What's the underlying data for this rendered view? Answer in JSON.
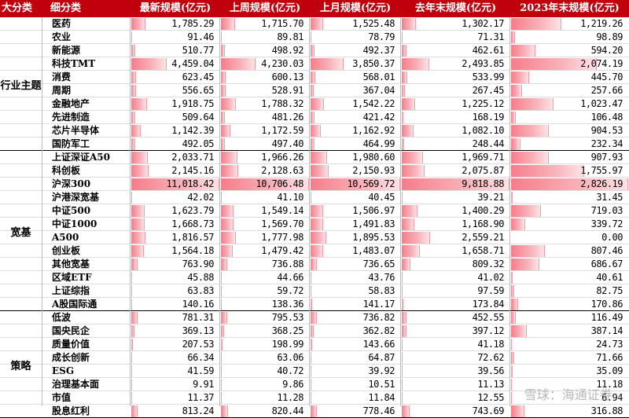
{
  "headers": [
    "大分类",
    "细分类",
    "最新规模(亿元)",
    "上周规模(亿元)",
    "上月规模(亿元)",
    "去年末规模(亿元)",
    "2023年末规模(亿元)"
  ],
  "groups": [
    {
      "name": "行业主题",
      "rows": [
        {
          "name": "医药",
          "values": [
            "1,785.29",
            "1,715.70",
            "1,525.48",
            "1,302.17",
            "1,219.26"
          ],
          "nums": [
            1785.29,
            1715.7,
            1525.48,
            1302.17,
            1219.26
          ]
        },
        {
          "name": "农业",
          "values": [
            "91.46",
            "89.81",
            "78.79",
            "71.31",
            "98.89"
          ],
          "nums": [
            91.46,
            89.81,
            78.79,
            71.31,
            98.89
          ]
        },
        {
          "name": "新能源",
          "values": [
            "510.77",
            "498.92",
            "492.37",
            "462.61",
            "594.20"
          ],
          "nums": [
            510.77,
            498.92,
            492.37,
            462.61,
            594.2
          ]
        },
        {
          "name": "科技TMT",
          "values": [
            "4,459.04",
            "4,230.03",
            "3,850.37",
            "2,493.85",
            "2,074.19"
          ],
          "nums": [
            4459.04,
            4230.03,
            3850.37,
            2493.85,
            2074.19
          ]
        },
        {
          "name": "消费",
          "values": [
            "623.45",
            "600.13",
            "568.01",
            "533.99",
            "445.70"
          ],
          "nums": [
            623.45,
            600.13,
            568.01,
            533.99,
            445.7
          ]
        },
        {
          "name": "周期",
          "values": [
            "556.65",
            "528.91",
            "367.04",
            "267.45",
            "257.66"
          ],
          "nums": [
            556.65,
            528.91,
            367.04,
            267.45,
            257.66
          ]
        },
        {
          "name": "金融地产",
          "values": [
            "1,918.75",
            "1,788.32",
            "1,542.22",
            "1,225.12",
            "1,023.47"
          ],
          "nums": [
            1918.75,
            1788.32,
            1542.22,
            1225.12,
            1023.47
          ]
        },
        {
          "name": "先进制造",
          "values": [
            "509.64",
            "481.26",
            "421.42",
            "168.19",
            "106.48"
          ],
          "nums": [
            509.64,
            481.26,
            421.42,
            168.19,
            106.48
          ]
        },
        {
          "name": "芯片半导体",
          "values": [
            "1,142.39",
            "1,172.59",
            "1,162.92",
            "1,082.10",
            "904.53"
          ],
          "nums": [
            1142.39,
            1172.59,
            1162.92,
            1082.1,
            904.53
          ]
        },
        {
          "name": "国防军工",
          "values": [
            "492.05",
            "497.40",
            "464.99",
            "248.44",
            "232.34"
          ],
          "nums": [
            492.05,
            497.4,
            464.99,
            248.44,
            232.34
          ]
        }
      ]
    },
    {
      "name": "宽基",
      "rows": [
        {
          "name": "上证深证A50",
          "values": [
            "2,033.71",
            "1,966.26",
            "1,980.60",
            "1,969.71",
            "907.93"
          ],
          "nums": [
            2033.71,
            1966.26,
            1980.6,
            1969.71,
            907.93
          ]
        },
        {
          "name": "科创板",
          "values": [
            "2,145.16",
            "2,128.63",
            "2,150.93",
            "2,075.87",
            "1,755.97"
          ],
          "nums": [
            2145.16,
            2128.63,
            2150.93,
            2075.87,
            1755.97
          ]
        },
        {
          "name": "沪深300",
          "values": [
            "11,018.42",
            "10,706.48",
            "10,569.72",
            "9,818.88",
            "2,826.19"
          ],
          "nums": [
            11018.42,
            10706.48,
            10569.72,
            9818.88,
            2826.19
          ]
        },
        {
          "name": "沪港深宽基",
          "values": [
            "42.02",
            "41.10",
            "40.45",
            "39.21",
            "31.45"
          ],
          "nums": [
            42.02,
            41.1,
            40.45,
            39.21,
            31.45
          ]
        },
        {
          "name": "中证500",
          "values": [
            "1,623.79",
            "1,549.14",
            "1,506.97",
            "1,400.29",
            "719.03"
          ],
          "nums": [
            1623.79,
            1549.14,
            1506.97,
            1400.29,
            719.03
          ]
        },
        {
          "name": "中证1000",
          "values": [
            "1,668.73",
            "1,569.70",
            "1,491.83",
            "1,168.90",
            "339.72"
          ],
          "nums": [
            1668.73,
            1569.7,
            1491.83,
            1168.9,
            339.72
          ]
        },
        {
          "name": "A500",
          "values": [
            "1,816.57",
            "1,777.98",
            "1,895.53",
            "2,559.21",
            "0.00"
          ],
          "nums": [
            1816.57,
            1777.98,
            1895.53,
            2559.21,
            0.0
          ]
        },
        {
          "name": "创业板",
          "values": [
            "1,564.18",
            "1,479.42",
            "1,483.07",
            "1,658.71",
            "807.46"
          ],
          "nums": [
            1564.18,
            1479.42,
            1483.07,
            1658.71,
            807.46
          ]
        },
        {
          "name": "其他宽基",
          "values": [
            "763.90",
            "736.88",
            "736.65",
            "809.32",
            "686.67"
          ],
          "nums": [
            763.9,
            736.88,
            736.65,
            809.32,
            686.67
          ]
        },
        {
          "name": "区域ETF",
          "values": [
            "45.88",
            "44.66",
            "43.76",
            "41.02",
            "40.61"
          ],
          "nums": [
            45.88,
            44.66,
            43.76,
            41.02,
            40.61
          ]
        },
        {
          "name": "上证综指",
          "values": [
            "63.83",
            "59.72",
            "58.83",
            "97.59",
            "82.75"
          ],
          "nums": [
            63.83,
            59.72,
            58.83,
            97.59,
            82.75
          ]
        },
        {
          "name": "A股国际通",
          "values": [
            "140.16",
            "138.36",
            "141.17",
            "173.84",
            "170.86"
          ],
          "nums": [
            140.16,
            138.36,
            141.17,
            173.84,
            170.86
          ]
        }
      ]
    },
    {
      "name": "策略",
      "rows": [
        {
          "name": "低波",
          "values": [
            "781.31",
            "795.53",
            "736.82",
            "452.55",
            "116.49"
          ],
          "nums": [
            781.31,
            795.53,
            736.82,
            452.55,
            116.49
          ]
        },
        {
          "name": "国央民企",
          "values": [
            "369.13",
            "368.25",
            "362.82",
            "397.12",
            "387.14"
          ],
          "nums": [
            369.13,
            368.25,
            362.82,
            397.12,
            387.14
          ]
        },
        {
          "name": "质量价值",
          "values": [
            "207.53",
            "198.99",
            "143.66",
            "41.18",
            "24.73"
          ],
          "nums": [
            207.53,
            198.99,
            143.66,
            41.18,
            24.73
          ]
        },
        {
          "name": "成长创新",
          "values": [
            "66.34",
            "63.06",
            "64.87",
            "72.62",
            "71.66"
          ],
          "nums": [
            66.34,
            63.06,
            64.87,
            72.62,
            71.66
          ]
        },
        {
          "name": "ESG",
          "values": [
            "41.59",
            "40.72",
            "39.92",
            "39.56",
            "35.09"
          ],
          "nums": [
            41.59,
            40.72,
            39.92,
            39.56,
            35.09
          ]
        },
        {
          "name": "治理基本面",
          "values": [
            "9.91",
            "9.86",
            "10.51",
            "11.13",
            "11.18"
          ],
          "nums": [
            9.91,
            9.86,
            10.51,
            11.13,
            11.18
          ]
        },
        {
          "name": "市值",
          "values": [
            "11.37",
            "11.28",
            "11.84",
            "12.55",
            "6.94"
          ],
          "nums": [
            11.37,
            11.28,
            11.84,
            12.55,
            6.94
          ]
        },
        {
          "name": "股息红利",
          "values": [
            "813.24",
            "820.44",
            "778.46",
            "743.69",
            "316.88"
          ],
          "nums": [
            813.24,
            820.44,
            778.46,
            743.69,
            316.88
          ]
        }
      ]
    }
  ],
  "watermark": "雪球：海通证券..."
}
